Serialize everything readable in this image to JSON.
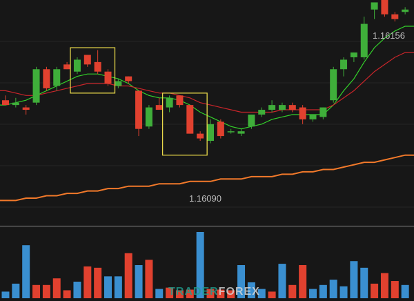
{
  "chart_data": {
    "type": "candlestick",
    "title": "",
    "price_labels": {
      "high": "1.16156",
      "low": "1.16090"
    },
    "colors": {
      "background": "#171717",
      "grid": "#262626",
      "bull": "#3fae3a",
      "bear": "#e1412f",
      "ma_fast": "#33d12a",
      "ma_mid": "#c9252a",
      "ma_slow": "#f2792a",
      "vol_up": "#3a8fd0",
      "vol_down": "#e1412f",
      "highlight_box": "#e8d84a",
      "separator": "#8a8a8a"
    },
    "y_range": [
      1.16068,
      1.16162
    ],
    "volume_max": 100,
    "candles": [
      {
        "o": 1.1612,
        "h": 1.16122,
        "l": 1.16118,
        "c": 1.16118
      },
      {
        "o": 1.16118,
        "h": 1.16121,
        "l": 1.16117,
        "c": 1.16119
      },
      {
        "o": 1.16117,
        "h": 1.16118,
        "l": 1.16114,
        "c": 1.16116
      },
      {
        "o": 1.16119,
        "h": 1.16134,
        "l": 1.16118,
        "c": 1.16133
      },
      {
        "o": 1.16133,
        "h": 1.16134,
        "l": 1.16124,
        "c": 1.16125
      },
      {
        "o": 1.16126,
        "h": 1.16134,
        "l": 1.16124,
        "c": 1.16133
      },
      {
        "o": 1.16135,
        "h": 1.16136,
        "l": 1.16133,
        "c": 1.16133
      },
      {
        "o": 1.16132,
        "h": 1.16138,
        "l": 1.16131,
        "c": 1.16137
      },
      {
        "o": 1.16139,
        "h": 1.16139,
        "l": 1.16134,
        "c": 1.16135
      },
      {
        "o": 1.16136,
        "h": 1.16141,
        "l": 1.16131,
        "c": 1.16132
      },
      {
        "o": 1.16132,
        "h": 1.16133,
        "l": 1.16126,
        "c": 1.16127
      },
      {
        "o": 1.16126,
        "h": 1.16129,
        "l": 1.16125,
        "c": 1.16128
      },
      {
        "o": 1.1613,
        "h": 1.1613,
        "l": 1.16127,
        "c": 1.16128
      },
      {
        "o": 1.16124,
        "h": 1.16124,
        "l": 1.16105,
        "c": 1.16108
      },
      {
        "o": 1.16109,
        "h": 1.16118,
        "l": 1.16108,
        "c": 1.16117
      },
      {
        "o": 1.16118,
        "h": 1.16121,
        "l": 1.16116,
        "c": 1.16116
      },
      {
        "o": 1.16117,
        "h": 1.16122,
        "l": 1.16115,
        "c": 1.16121
      },
      {
        "o": 1.16122,
        "h": 1.16122,
        "l": 1.16117,
        "c": 1.16118
      },
      {
        "o": 1.16118,
        "h": 1.16118,
        "l": 1.16106,
        "c": 1.16106
      },
      {
        "o": 1.16106,
        "h": 1.16107,
        "l": 1.16103,
        "c": 1.16104
      },
      {
        "o": 1.16103,
        "h": 1.16112,
        "l": 1.16102,
        "c": 1.1611
      },
      {
        "o": 1.16111,
        "h": 1.16112,
        "l": 1.16104,
        "c": 1.16105
      },
      {
        "o": 1.16107,
        "h": 1.16108,
        "l": 1.16106,
        "c": 1.16107
      },
      {
        "o": 1.16106,
        "h": 1.16108,
        "l": 1.16105,
        "c": 1.16107
      },
      {
        "o": 1.16109,
        "h": 1.16114,
        "l": 1.16108,
        "c": 1.16114
      },
      {
        "o": 1.16114,
        "h": 1.16117,
        "l": 1.16113,
        "c": 1.16116
      },
      {
        "o": 1.16116,
        "h": 1.1612,
        "l": 1.16115,
        "c": 1.16118
      },
      {
        "o": 1.16116,
        "h": 1.16119,
        "l": 1.16115,
        "c": 1.16118
      },
      {
        "o": 1.16118,
        "h": 1.16119,
        "l": 1.16115,
        "c": 1.16116
      },
      {
        "o": 1.16117,
        "h": 1.16118,
        "l": 1.1611,
        "c": 1.16112
      },
      {
        "o": 1.16112,
        "h": 1.16114,
        "l": 1.16111,
        "c": 1.16114
      },
      {
        "o": 1.16113,
        "h": 1.16117,
        "l": 1.16112,
        "c": 1.16117
      },
      {
        "o": 1.1612,
        "h": 1.16134,
        "l": 1.16119,
        "c": 1.16133
      },
      {
        "o": 1.16133,
        "h": 1.16138,
        "l": 1.1613,
        "c": 1.16137
      },
      {
        "o": 1.16138,
        "h": 1.1614,
        "l": 1.16136,
        "c": 1.1614
      },
      {
        "o": 1.16138,
        "h": 1.16155,
        "l": 1.16137,
        "c": 1.16152
      },
      {
        "o": 1.16158,
        "h": 1.16161,
        "l": 1.16154,
        "c": 1.16161
      },
      {
        "o": 1.16163,
        "h": 1.16163,
        "l": 1.16155,
        "c": 1.16156
      },
      {
        "o": 1.16156,
        "h": 1.16157,
        "l": 1.16153,
        "c": 1.16154
      },
      {
        "o": 1.16157,
        "h": 1.16159,
        "l": 1.16156,
        "c": 1.16158
      }
    ],
    "volumes": [
      {
        "v": 10,
        "dir": "up"
      },
      {
        "v": 22,
        "dir": "up"
      },
      {
        "v": 80,
        "dir": "up"
      },
      {
        "v": 20,
        "dir": "down"
      },
      {
        "v": 20,
        "dir": "down"
      },
      {
        "v": 30,
        "dir": "down"
      },
      {
        "v": 12,
        "dir": "down"
      },
      {
        "v": 25,
        "dir": "up"
      },
      {
        "v": 48,
        "dir": "down"
      },
      {
        "v": 46,
        "dir": "down"
      },
      {
        "v": 33,
        "dir": "up"
      },
      {
        "v": 33,
        "dir": "up"
      },
      {
        "v": 68,
        "dir": "down"
      },
      {
        "v": 50,
        "dir": "up"
      },
      {
        "v": 58,
        "dir": "down"
      },
      {
        "v": 14,
        "dir": "up"
      },
      {
        "v": 16,
        "dir": "down"
      },
      {
        "v": 12,
        "dir": "down"
      },
      {
        "v": 13,
        "dir": "down"
      },
      {
        "v": 100,
        "dir": "up"
      },
      {
        "v": 14,
        "dir": "down"
      },
      {
        "v": 13,
        "dir": "down"
      },
      {
        "v": 12,
        "dir": "down"
      },
      {
        "v": 50,
        "dir": "up"
      },
      {
        "v": 24,
        "dir": "up"
      },
      {
        "v": 14,
        "dir": "up"
      },
      {
        "v": 10,
        "dir": "down"
      },
      {
        "v": 52,
        "dir": "up"
      },
      {
        "v": 20,
        "dir": "down"
      },
      {
        "v": 50,
        "dir": "down"
      },
      {
        "v": 14,
        "dir": "up"
      },
      {
        "v": 20,
        "dir": "up"
      },
      {
        "v": 28,
        "dir": "up"
      },
      {
        "v": 18,
        "dir": "up"
      },
      {
        "v": 56,
        "dir": "up"
      },
      {
        "v": 46,
        "dir": "up"
      },
      {
        "v": 22,
        "dir": "down"
      },
      {
        "v": 38,
        "dir": "down"
      },
      {
        "v": 26,
        "dir": "down"
      },
      {
        "v": 20,
        "dir": "up"
      }
    ],
    "moving_averages": [
      {
        "name": "fast MA",
        "color": "#33d12a",
        "values": [
          1.16118,
          1.16119,
          1.1612,
          1.16122,
          1.16124,
          1.16126,
          1.16128,
          1.1613,
          1.16131,
          1.16131,
          1.1613,
          1.16129,
          1.16127,
          1.16124,
          1.16122,
          1.16121,
          1.16121,
          1.1612,
          1.16118,
          1.16115,
          1.16113,
          1.16111,
          1.16109,
          1.16108,
          1.16109,
          1.1611,
          1.16112,
          1.16113,
          1.16114,
          1.16114,
          1.16114,
          1.16114,
          1.16118,
          1.16124,
          1.16129,
          1.16136,
          1.16142,
          1.16146,
          1.16149,
          1.16151
        ]
      },
      {
        "name": "mid MA",
        "color": "#c9252a",
        "values": [
          1.16124,
          1.16123,
          1.16122,
          1.16122,
          1.16123,
          1.16124,
          1.16125,
          1.16126,
          1.16127,
          1.16127,
          1.16127,
          1.16126,
          1.16126,
          1.16125,
          1.16124,
          1.16123,
          1.16123,
          1.16122,
          1.16121,
          1.16119,
          1.16118,
          1.16117,
          1.16116,
          1.16115,
          1.16115,
          1.16115,
          1.16115,
          1.16116,
          1.16116,
          1.16116,
          1.16116,
          1.16116,
          1.16118,
          1.16121,
          1.16124,
          1.16128,
          1.16132,
          1.16135,
          1.16138,
          1.1614
        ]
      },
      {
        "name": "slow MA",
        "color": "#f2792a",
        "values": [
          1.16078,
          1.16078,
          1.16079,
          1.16079,
          1.1608,
          1.1608,
          1.16081,
          1.16081,
          1.16082,
          1.16082,
          1.16083,
          1.16083,
          1.16084,
          1.16084,
          1.16084,
          1.16085,
          1.16085,
          1.16085,
          1.16086,
          1.16086,
          1.16086,
          1.16087,
          1.16087,
          1.16087,
          1.16088,
          1.16088,
          1.16088,
          1.16089,
          1.16089,
          1.1609,
          1.1609,
          1.16091,
          1.16091,
          1.16092,
          1.16093,
          1.16094,
          1.16094,
          1.16095,
          1.16096,
          1.16097
        ]
      }
    ],
    "highlight_ranges": [
      {
        "from_index": 7,
        "to_index": 10,
        "price_top": 1.16142,
        "price_bottom": 1.16123
      },
      {
        "from_index": 16,
        "to_index": 19,
        "price_top": 1.16123,
        "price_bottom": 1.16097
      }
    ]
  },
  "watermark": {
    "part1": "TRADER",
    "part2": "FOREX",
    "color1": "#1f9e8f",
    "color2": "#d9d9d9"
  }
}
